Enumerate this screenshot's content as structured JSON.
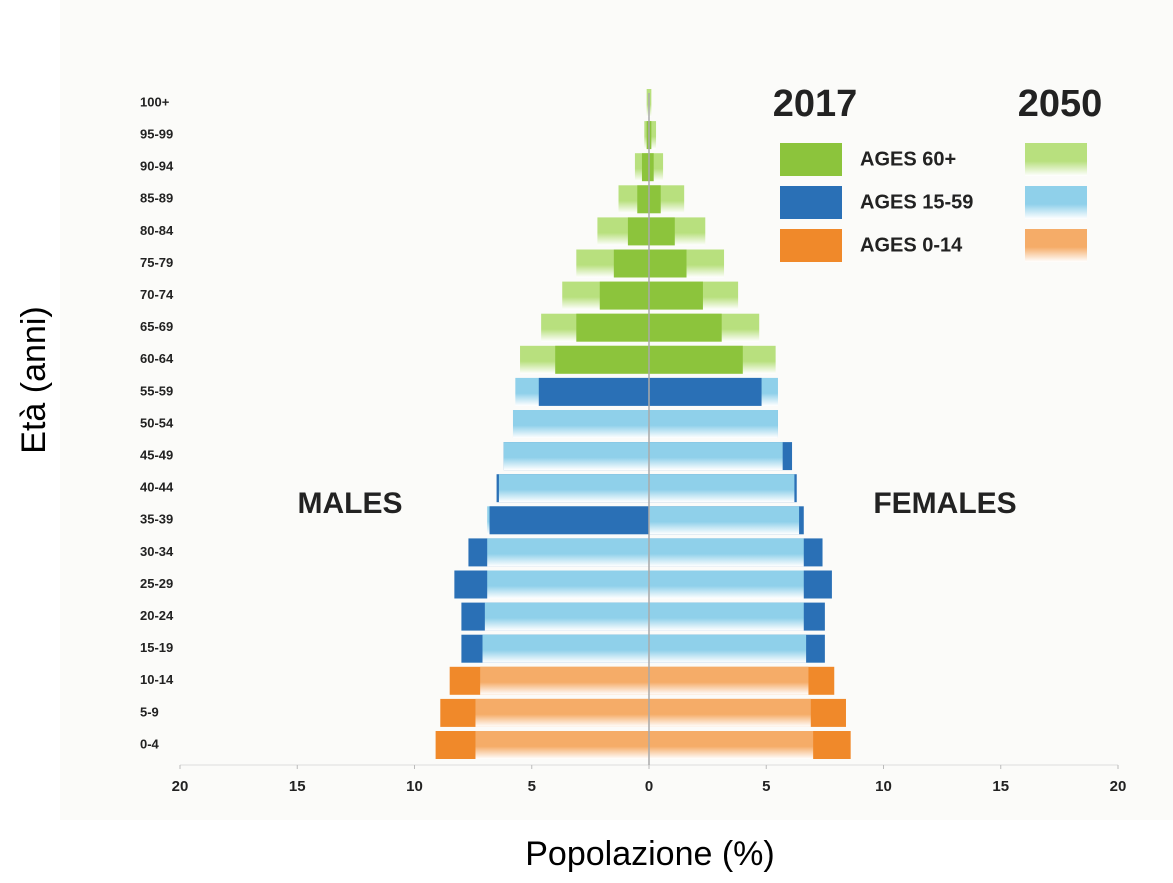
{
  "chart_data": {
    "type": "pyramid",
    "x_label": "Popolazione (%)",
    "y_label": "Età (anni)",
    "left_label": "MALES",
    "right_label": "FEMALES",
    "categories": [
      "0-4",
      "5-9",
      "10-14",
      "15-19",
      "20-24",
      "25-29",
      "30-34",
      "35-39",
      "40-44",
      "45-49",
      "50-54",
      "55-59",
      "60-64",
      "65-69",
      "70-74",
      "75-79",
      "80-84",
      "85-89",
      "90-94",
      "95-99",
      "100+"
    ],
    "groups": [
      {
        "name": "AGES 60+",
        "members": [
          "60-64",
          "65-69",
          "70-74",
          "75-79",
          "80-84",
          "85-89",
          "90-94",
          "95-99",
          "100+"
        ]
      },
      {
        "name": "AGES 15-59",
        "members": [
          "15-19",
          "20-24",
          "25-29",
          "30-34",
          "35-39",
          "40-44",
          "45-49",
          "50-54",
          "55-59"
        ]
      },
      {
        "name": "AGES 0-14",
        "members": [
          "0-4",
          "5-9",
          "10-14"
        ]
      }
    ],
    "series": [
      {
        "name": "2017",
        "colors": [
          "#8cc43c",
          "#2a70b6",
          "#f0892a"
        ],
        "males": [
          9.1,
          8.9,
          8.5,
          8.0,
          8.0,
          8.3,
          7.7,
          6.8,
          6.5,
          6.2,
          5.8,
          4.7,
          4.0,
          3.1,
          2.1,
          1.5,
          0.9,
          0.5,
          0.3,
          0.1,
          0
        ],
        "females": [
          8.6,
          8.4,
          7.9,
          7.5,
          7.5,
          7.8,
          7.4,
          6.6,
          6.3,
          6.1,
          5.5,
          4.8,
          4.0,
          3.1,
          2.3,
          1.6,
          1.1,
          0.5,
          0.2,
          0.1,
          0
        ]
      },
      {
        "name": "2050",
        "colors": [
          "#b8e07e",
          "#8fd0ea",
          "#f5ac68"
        ],
        "males": [
          7.4,
          7.4,
          7.2,
          7.1,
          7.0,
          6.9,
          6.9,
          6.9,
          6.4,
          6.2,
          5.8,
          5.7,
          5.5,
          4.6,
          3.7,
          3.1,
          2.2,
          1.3,
          0.6,
          0.2,
          0.1
        ],
        "females": [
          7.0,
          6.9,
          6.8,
          6.7,
          6.6,
          6.6,
          6.6,
          6.4,
          6.2,
          5.7,
          5.5,
          5.5,
          5.4,
          4.7,
          3.8,
          3.2,
          2.4,
          1.5,
          0.6,
          0.3,
          0.1
        ]
      }
    ],
    "xlim": [
      -20,
      20
    ],
    "xticks": [
      {
        "value": -20,
        "label": "20"
      },
      {
        "value": -15,
        "label": "15"
      },
      {
        "value": -10,
        "label": "10"
      },
      {
        "value": -5,
        "label": "5"
      },
      0,
      5,
      10,
      15,
      20
    ]
  }
}
